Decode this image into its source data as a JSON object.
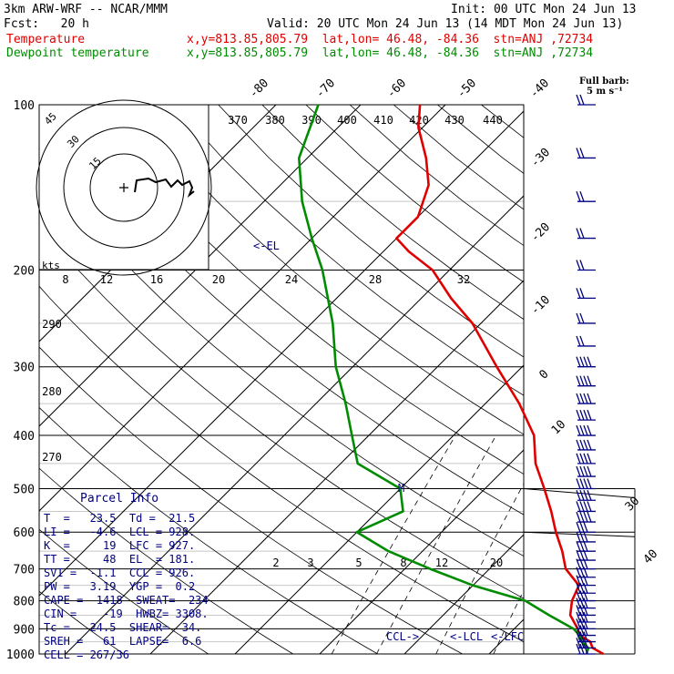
{
  "header": {
    "model": "3km ARW-WRF -- NCAR/MMM",
    "init": "Init: 00 UTC Mon 24 Jun 13",
    "fcst": "Fcst:   20 h",
    "valid": "Valid: 20 UTC Mon 24 Jun 13 (14 MDT Mon 24 Jun 13)",
    "temp_label": "Temperature",
    "temp_loc": "x,y=813.85,805.79  lat,lon= 46.48, -84.36  stn=ANJ ,72734",
    "dew_label": "Dewpoint temperature",
    "dew_loc": "x,y=813.85,805.79  lat,lon= 46.48, -84.36  stn=ANJ ,72734"
  },
  "barb_legend": {
    "title": "Full barb:",
    "unit": "5 m s⁻¹"
  },
  "hodograph": {
    "unit": "kts",
    "ring_labels": [
      "15",
      "30",
      "45"
    ]
  },
  "parcel_info": {
    "title": "Parcel Info",
    "rows": [
      "T  =   23.5  Td =  21.5",
      "LI =   -4.6  LCL = 928.",
      "K  =     19  LFC = 927.",
      "TT =     48  EL  = 181.",
      "SVI =  -1.1  CCL = 926.",
      "PW =   3.19  YGP =  0.2",
      "CAPE =  1418  SWEAT=  234",
      "CIN =    -19  HWBZ= 3308.",
      "Tc =   24.5  SHEAR=  34.",
      "SREH =   61  LAPSE=  6.6",
      "CELL = 267/36"
    ]
  },
  "colors": {
    "temperature": "#e00000",
    "dewpoint": "#008c00",
    "annotation": "#000080",
    "grid": "#000000"
  },
  "chart_data": {
    "type": "line",
    "chart_kind": "skew-T log-P sounding",
    "y_axis": {
      "scale": "log",
      "unit": "hPa",
      "range": [
        1000,
        100
      ],
      "ticks": [
        "100",
        "200",
        "300",
        "400",
        "500",
        "600",
        "700",
        "800",
        "900",
        "1000"
      ]
    },
    "isotherm_labels": [
      "-80",
      "-70",
      "-60",
      "-50",
      "-40",
      "-30",
      "-20",
      "-10",
      "0",
      "10",
      "30",
      "40"
    ],
    "theta_labels": [
      "370",
      "380",
      "390",
      "400",
      "410",
      "420",
      "430",
      "440",
      "290",
      "280",
      "270"
    ],
    "mixing_ratio_labels_upper": [
      "8",
      "12",
      "16",
      "20",
      "24",
      "28",
      "32"
    ],
    "mixing_ratio_labels_lower": [
      "2",
      "3",
      "5",
      "8",
      "12",
      "20"
    ],
    "series": [
      {
        "name": "Temperature",
        "color": "#e00000",
        "points": [
          [
            1000,
            23.5
          ],
          [
            975,
            21.5
          ],
          [
            950,
            20.5
          ],
          [
            925,
            18.5
          ],
          [
            900,
            17.5
          ],
          [
            850,
            15.0
          ],
          [
            800,
            13.5
          ],
          [
            750,
            12.5
          ],
          [
            700,
            9.0
          ],
          [
            650,
            6.5
          ],
          [
            600,
            3.5
          ],
          [
            550,
            0.5
          ],
          [
            500,
            -3.0
          ],
          [
            450,
            -7.0
          ],
          [
            400,
            -10.5
          ],
          [
            350,
            -16.0
          ],
          [
            300,
            -23.0
          ],
          [
            250,
            -31.0
          ],
          [
            225,
            -36.5
          ],
          [
            200,
            -42.0
          ],
          [
            185,
            -47.0
          ],
          [
            175,
            -50.0
          ],
          [
            160,
            -50.0
          ],
          [
            140,
            -52.5
          ],
          [
            125,
            -56.0
          ],
          [
            110,
            -60.5
          ],
          [
            100,
            -63.0
          ]
        ]
      },
      {
        "name": "Dewpoint temperature",
        "color": "#008c00",
        "points": [
          [
            1000,
            21.5
          ],
          [
            975,
            21.0
          ],
          [
            950,
            19.5
          ],
          [
            925,
            18.5
          ],
          [
            900,
            17.0
          ],
          [
            850,
            12.5
          ],
          [
            800,
            8.0
          ],
          [
            750,
            0.0
          ],
          [
            700,
            -7.0
          ],
          [
            650,
            -14.0
          ],
          [
            600,
            -20.0
          ],
          [
            550,
            -17.0
          ],
          [
            500,
            -20.0
          ],
          [
            450,
            -28.0
          ],
          [
            400,
            -32.0
          ],
          [
            350,
            -36.5
          ],
          [
            300,
            -42.0
          ],
          [
            250,
            -47.5
          ],
          [
            200,
            -55.0
          ],
          [
            175,
            -60.0
          ],
          [
            150,
            -65.5
          ],
          [
            125,
            -71.0
          ],
          [
            100,
            -75.0
          ]
        ]
      }
    ],
    "annotations": [
      {
        "label": "<-EL",
        "p": 181
      },
      {
        "label": "CCL->",
        "p": 926
      },
      {
        "label": "<-LCL",
        "p": 928
      },
      {
        "label": "<-LFC",
        "p": 927
      },
      {
        "label": "M",
        "p": 500
      }
    ],
    "wind_profile": {
      "barbs_from_hPa": 100,
      "barbs_to_hPa": 1000
    }
  }
}
